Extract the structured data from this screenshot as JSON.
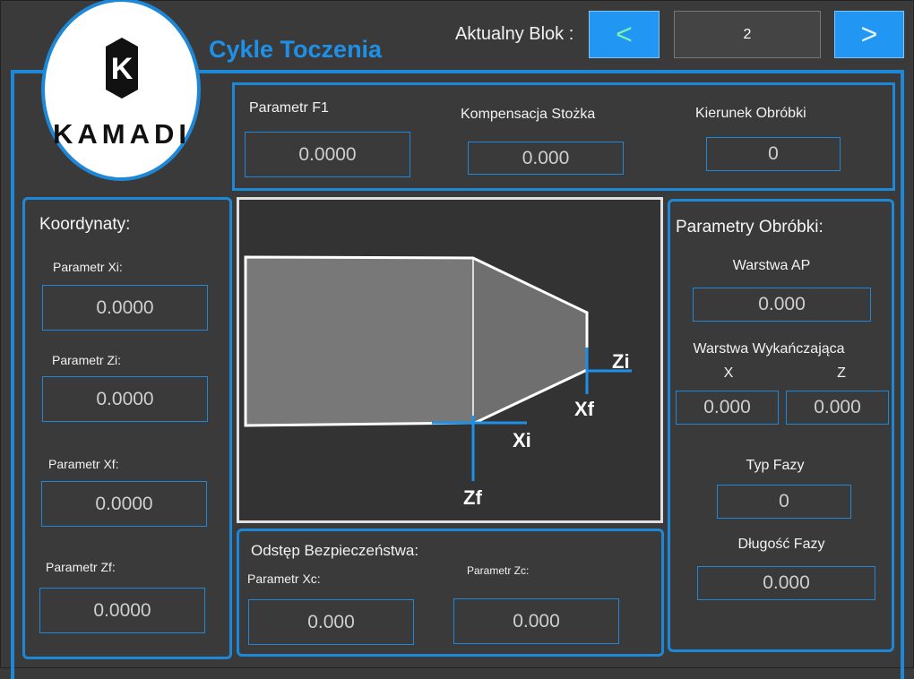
{
  "header": {
    "logo_letter": "K",
    "logo_text": "KAMADI",
    "title": "Cykle Toczenia",
    "block_label": "Aktualny Blok :",
    "prev_button": "<",
    "block_value": "2",
    "next_button": ">"
  },
  "top_panel": {
    "fields": [
      {
        "label": "Parametr F1",
        "value": "0.0000"
      },
      {
        "label": "Kompensacja Stożka",
        "value": "0.000"
      },
      {
        "label": "Kierunek Obróbki",
        "value": "0"
      }
    ]
  },
  "coordinates": {
    "title": "Koordynaty:",
    "fields": [
      {
        "label": "Parametr Xi:",
        "value": "0.0000"
      },
      {
        "label": "Parametr Zi:",
        "value": "0.0000"
      },
      {
        "label": "Parametr Xf:",
        "value": "0.0000"
      },
      {
        "label": "Parametr Zf:",
        "value": "0.0000"
      }
    ]
  },
  "diagram": {
    "labels": [
      "Zi",
      "Xf",
      "Xi",
      "Zf"
    ]
  },
  "safety": {
    "title": "Odstęp Bezpieczeństwa:",
    "fields": [
      {
        "label": "Parametr Xc:",
        "value": "0.000"
      },
      {
        "label": "Parametr Zc:",
        "value": "0.000"
      }
    ]
  },
  "machining": {
    "title": "Parametry Obróbki:",
    "ap_label": "Warstwa AP",
    "ap_value": "0.000",
    "finish_label": "Warstwa Wykańczająca",
    "finish_x_label": "X",
    "finish_z_label": "Z",
    "finish_x_value": "0.000",
    "finish_z_value": "0.000",
    "chamfer_type_label": "Typ Fazy",
    "chamfer_type_value": "0",
    "chamfer_length_label": "Długość Fazy",
    "chamfer_length_value": "0.000"
  }
}
